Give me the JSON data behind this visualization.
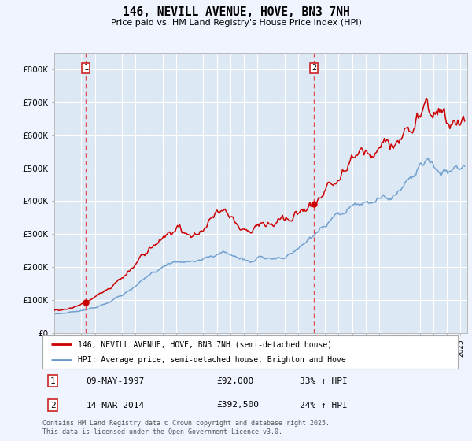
{
  "title": "146, NEVILL AVENUE, HOVE, BN3 7NH",
  "subtitle": "Price paid vs. HM Land Registry's House Price Index (HPI)",
  "background_color": "#f0f4ff",
  "plot_bg_color": "#dde8f5",
  "legend_label_red": "146, NEVILL AVENUE, HOVE, BN3 7NH (semi-detached house)",
  "legend_label_blue": "HPI: Average price, semi-detached house, Brighton and Hove",
  "transaction1_date": "09-MAY-1997",
  "transaction1_price": 92000,
  "transaction1_hpi": "33% ↑ HPI",
  "transaction2_date": "14-MAR-2014",
  "transaction2_price": 392500,
  "transaction2_hpi": "24% ↑ HPI",
  "vline1_x": 1997.35,
  "vline2_x": 2014.2,
  "dot1_x": 1997.35,
  "dot1_y": 92000,
  "dot2_x": 2014.2,
  "dot2_y": 392500,
  "ylim": [
    0,
    850000
  ],
  "xlim": [
    1995.0,
    2025.5
  ],
  "footer": "Contains HM Land Registry data © Crown copyright and database right 2025.\nThis data is licensed under the Open Government Licence v3.0.",
  "red_color": "#cc0000",
  "blue_color": "#6699cc",
  "vline_color": "#e05050"
}
